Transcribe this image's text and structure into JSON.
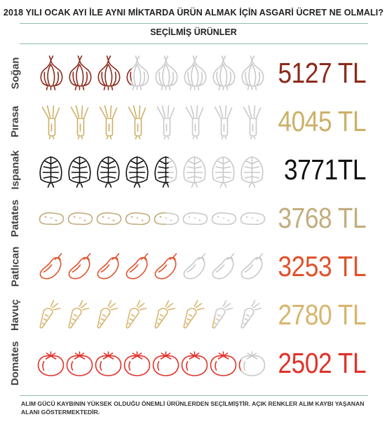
{
  "title": "2018 YILI OCAK AYI İLE AYNI MİKTARDA ÜRÜN ALMAK İÇİN ASGARİ ÜCRET NE OLMALI?",
  "subtitle": "SEÇİLMİŞ ÜRÜNLER",
  "footnote": "ALIM GÜCÜ KAYBININ YÜKSEK OLDUĞU ÖNEMLİ ÜRÜNLERDEN SEÇİLMİŞTİR. AÇIK RENKLER ALIM KAYBI YAŞANAN ALANI GÖSTERMEKTEDİR.",
  "chart_data": {
    "type": "bar",
    "icon_total": 8,
    "categories": [
      "Soğan",
      "Pırasa",
      "Ispanak",
      "Patates",
      "Patlıcan",
      "Havuç",
      "Domates"
    ],
    "values": [
      5127,
      4045,
      3771,
      3768,
      3253,
      2780,
      2502
    ],
    "labels": [
      "5127 TL",
      "4045 TL",
      "3771TL",
      "3768 TL",
      "3253 TL",
      "2780 TL",
      "2502 TL"
    ],
    "filled_icons": [
      3.3,
      4.2,
      4.6,
      4.5,
      5.1,
      6.2,
      7.1
    ],
    "icons": [
      "onion-icon",
      "leek-icon",
      "spinach-icon",
      "potato-icon",
      "eggplant-icon",
      "carrot-icon",
      "tomato-icon"
    ],
    "colors": [
      "#8b2a1c",
      "#cdb068",
      "#111111",
      "#c2ad7e",
      "#e0522c",
      "#d8b56e",
      "#e0322a"
    ],
    "faded_color": "#c9c9c9"
  }
}
